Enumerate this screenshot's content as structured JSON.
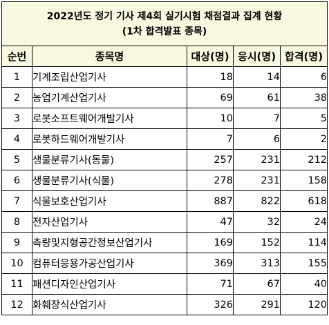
{
  "title": {
    "line1": "2022년도 정기 기사 제4회 실기시험 채점결과 집계 현황",
    "line2": "(1차 합격발표 종목)"
  },
  "headers": {
    "no": "순번",
    "name": "종목명",
    "target": "대상(명)",
    "applied": "응시(명)",
    "passed": "합격(명)"
  },
  "rows": [
    {
      "no": "1",
      "name": "기계조립산업기사",
      "target": "18",
      "applied": "14",
      "passed": "6"
    },
    {
      "no": "2",
      "name": "농업기계산업기사",
      "target": "69",
      "applied": "61",
      "passed": "38"
    },
    {
      "no": "3",
      "name": "로봇소프트웨어개발기사",
      "target": "10",
      "applied": "7",
      "passed": "5"
    },
    {
      "no": "4",
      "name": "로봇하드웨어개발기사",
      "target": "7",
      "applied": "6",
      "passed": "2"
    },
    {
      "no": "5",
      "name": "생물분류기사(동물)",
      "target": "257",
      "applied": "231",
      "passed": "212"
    },
    {
      "no": "6",
      "name": "생물분류기사(식물)",
      "target": "278",
      "applied": "231",
      "passed": "158"
    },
    {
      "no": "7",
      "name": "식물보호산업기사",
      "target": "887",
      "applied": "822",
      "passed": "618"
    },
    {
      "no": "8",
      "name": "전자산업기사",
      "target": "47",
      "applied": "32",
      "passed": "24"
    },
    {
      "no": "9",
      "name": "측량및지형공간정보산업기사",
      "target": "169",
      "applied": "152",
      "passed": "114"
    },
    {
      "no": "10",
      "name": "컴퓨터응용가공산업기사",
      "target": "369",
      "applied": "313",
      "passed": "155"
    },
    {
      "no": "11",
      "name": "패션디자인산업기사",
      "target": "71",
      "applied": "67",
      "passed": "40"
    },
    {
      "no": "12",
      "name": "화훼장식산업기사",
      "target": "326",
      "applied": "291",
      "passed": "120"
    }
  ]
}
